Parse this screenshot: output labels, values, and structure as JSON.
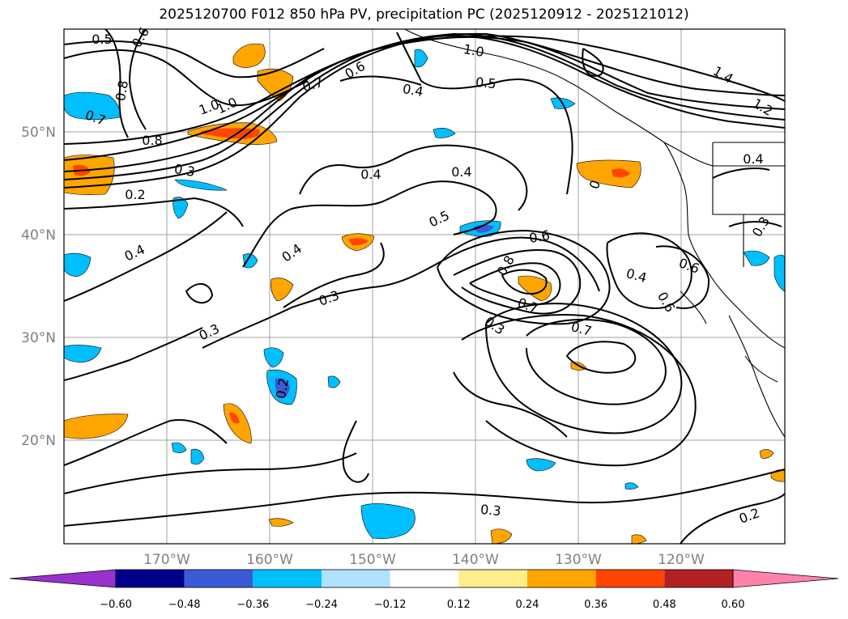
{
  "title": "2025120700 F012 850 hPa PV, precipitation PC (2025120912 - 2025121012)",
  "map": {
    "lon_labels": [
      "170°W",
      "160°W",
      "150°W",
      "140°W",
      "130°W",
      "120°W"
    ],
    "lat_labels": [
      "50°N",
      "40°N",
      "30°N",
      "20°N"
    ],
    "label_color": "#808080",
    "contour_labels": [
      "0.5",
      "0.6",
      "0.8",
      "0.7",
      "1.0",
      "1.0",
      "0.8",
      "0.3",
      "0.2",
      "0.4",
      "0.4",
      "0.3",
      "1.0",
      "0.6",
      "0.7",
      "0.4",
      "0.5",
      "0.4",
      "0.4",
      "0.5",
      "0.6",
      "0.8",
      "0.7",
      "0.3",
      "0.7",
      "1.4",
      "1.2",
      "0.4",
      "0.6",
      "0.4",
      "0.3",
      "0.6",
      "0.3",
      "0.3",
      "0.2",
      "0.2",
      "0"
    ],
    "colorbar": {
      "tick_labels": [
        "−0.60",
        "−0.48",
        "−0.36",
        "−0.24",
        "−0.12",
        "0.12",
        "0.24",
        "0.36",
        "0.48",
        "0.60"
      ],
      "colors": [
        "#9932cc",
        "#00008b",
        "#3a5bd6",
        "#00bfff",
        "#b0e2ff",
        "#ffffff",
        "#ffec8b",
        "#ffa500",
        "#ff4500",
        "#b22222",
        "#ff83a8"
      ]
    }
  }
}
